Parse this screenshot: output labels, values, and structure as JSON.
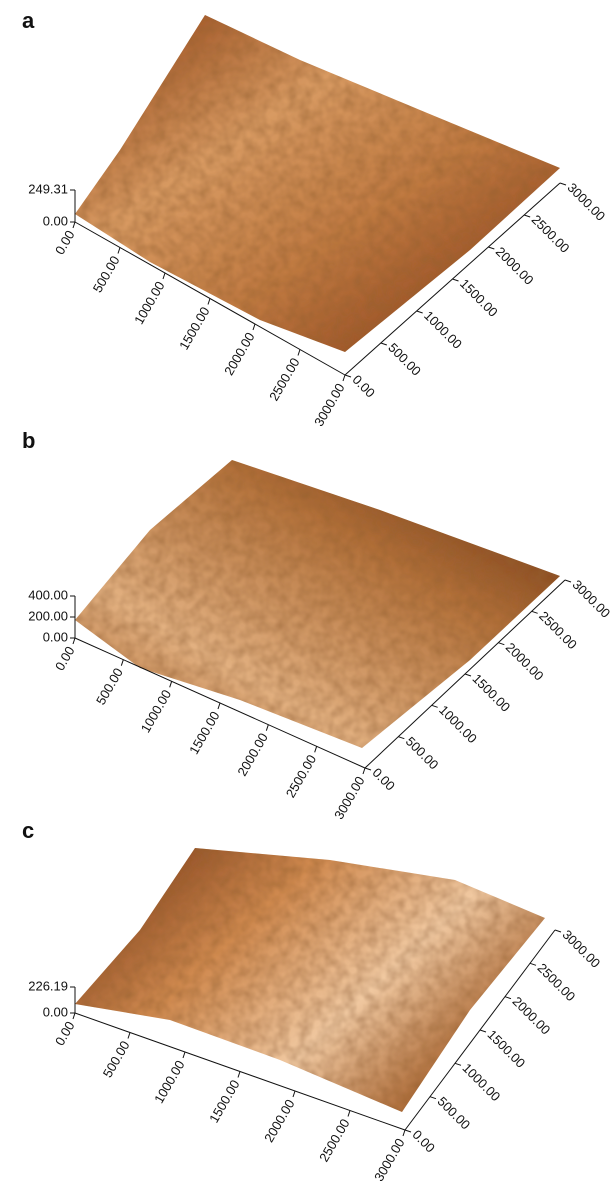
{
  "panels": [
    {
      "label": "a",
      "z_ticks": [
        "249.31",
        "0.00"
      ],
      "x_ticks": [
        "0.00",
        "500.00",
        "1000.00",
        "1500.00",
        "2000.00",
        "2500.00",
        "3000.00"
      ],
      "y_ticks": [
        "0.00",
        "500.00",
        "1000.00",
        "1500.00",
        "2000.00",
        "2500.00",
        "3000.00"
      ]
    },
    {
      "label": "b",
      "z_ticks": [
        "400.00",
        "200.00",
        "0.00"
      ],
      "x_ticks": [
        "0.00",
        "500.00",
        "1000.00",
        "1500.00",
        "2000.00",
        "2500.00",
        "3000.00"
      ],
      "y_ticks": [
        "0.00",
        "500.00",
        "1000.00",
        "1500.00",
        "2000.00",
        "2500.00",
        "3000.00"
      ]
    },
    {
      "label": "c",
      "z_ticks": [
        "226.19",
        "0.00"
      ],
      "x_ticks": [
        "0.00",
        "500.00",
        "1000.00",
        "1500.00",
        "2000.00",
        "2500.00",
        "3000.00"
      ],
      "y_ticks": [
        "0.00",
        "500.00",
        "1000.00",
        "1500.00",
        "2000.00",
        "2500.00",
        "3000.00"
      ]
    }
  ]
}
